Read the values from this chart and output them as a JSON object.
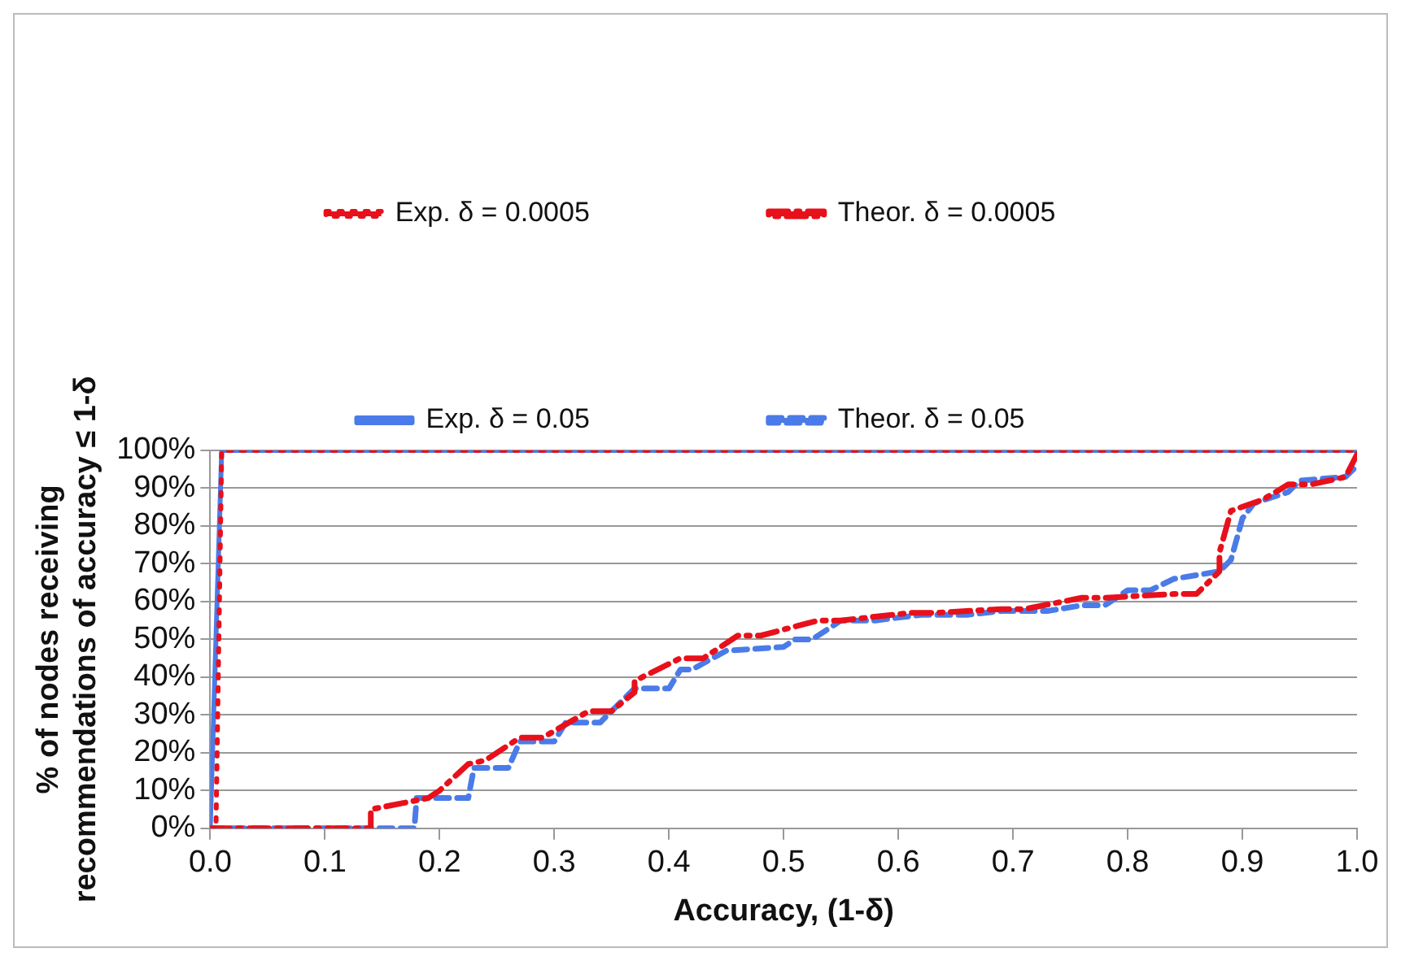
{
  "chart_data": {
    "type": "line",
    "xlabel": "Accuracy, (1-δ)",
    "ylabel": "% of nodes receiving\nrecommendations of accuracy ≤ 1-δ",
    "xlim": [
      0,
      1
    ],
    "xticks": [
      {
        "value": 0,
        "label": "0.0"
      },
      0.1,
      0.2,
      0.3,
      0.4,
      0.5,
      0.6,
      0.7,
      0.8,
      0.9,
      {
        "value": 1,
        "label": "1.0"
      }
    ],
    "ylim": [
      0,
      100
    ],
    "yticks": [
      {
        "value": 0,
        "label": "0%"
      },
      {
        "value": 10,
        "label": "10%"
      },
      {
        "value": 20,
        "label": "20%"
      },
      {
        "value": 30,
        "label": "30%"
      },
      {
        "value": 40,
        "label": "40%"
      },
      {
        "value": 50,
        "label": "50%"
      },
      {
        "value": 60,
        "label": "60%"
      },
      {
        "value": 70,
        "label": "70%"
      },
      {
        "value": 80,
        "label": "80%"
      },
      {
        "value": 90,
        "label": "90%"
      },
      {
        "value": 100,
        "label": "100%"
      }
    ],
    "grid": "y",
    "legend": "top",
    "marker": "none",
    "series": [
      {
        "name": "Exp. δ = 0.0005",
        "color": "#e8101a",
        "line_style": "dotted",
        "x": [
          0,
          0.005,
          0.01,
          1
        ],
        "values": [
          0,
          0,
          100,
          100
        ]
      },
      {
        "name": "Theor. δ = 0.0005",
        "color": "#e8101a",
        "line_style": "dashdot",
        "x": [
          0,
          0.14,
          0.14,
          0.19,
          0.2,
          0.225,
          0.24,
          0.27,
          0.29,
          0.33,
          0.35,
          0.37,
          0.37,
          0.41,
          0.43,
          0.46,
          0.48,
          0.53,
          0.55,
          0.61,
          0.63,
          0.69,
          0.71,
          0.76,
          0.78,
          0.84,
          0.86,
          0.88,
          0.88,
          0.89,
          0.918,
          0.94,
          0.96,
          0.99,
          1
        ],
        "values": [
          0,
          0,
          5,
          8,
          10,
          17,
          18,
          24,
          24,
          31,
          31,
          36,
          39,
          45,
          45,
          51,
          51,
          55,
          55,
          57,
          57,
          58,
          58,
          61,
          61,
          62,
          62,
          68,
          73,
          84,
          87,
          91,
          91,
          93,
          99
        ]
      },
      {
        "name": "Exp. δ = 0.05",
        "color": "#4a7be8",
        "line_style": "solid",
        "x": [
          0,
          0.01,
          1
        ],
        "values": [
          0,
          100,
          100
        ]
      },
      {
        "name": "Theor. δ = 0.05",
        "color": "#4a7be8",
        "line_style": "dashed",
        "x": [
          0,
          0.178,
          0.18,
          0.225,
          0.23,
          0.26,
          0.27,
          0.3,
          0.31,
          0.34,
          0.37,
          0.4,
          0.41,
          0.42,
          0.45,
          0.5,
          0.51,
          0.525,
          0.55,
          0.58,
          0.62,
          0.66,
          0.69,
          0.73,
          0.76,
          0.78,
          0.8,
          0.82,
          0.84,
          0.88,
          0.89,
          0.9,
          0.91,
          0.94,
          0.95,
          0.99,
          1
        ],
        "values": [
          0,
          0,
          8,
          8,
          16,
          16,
          23,
          23,
          28,
          28,
          37,
          37,
          42,
          42,
          47,
          48,
          50,
          50,
          55,
          55,
          56.5,
          56.5,
          57.5,
          57.5,
          59,
          59,
          63,
          63,
          66,
          68,
          71,
          82,
          86,
          89,
          92,
          93,
          96
        ]
      }
    ]
  }
}
